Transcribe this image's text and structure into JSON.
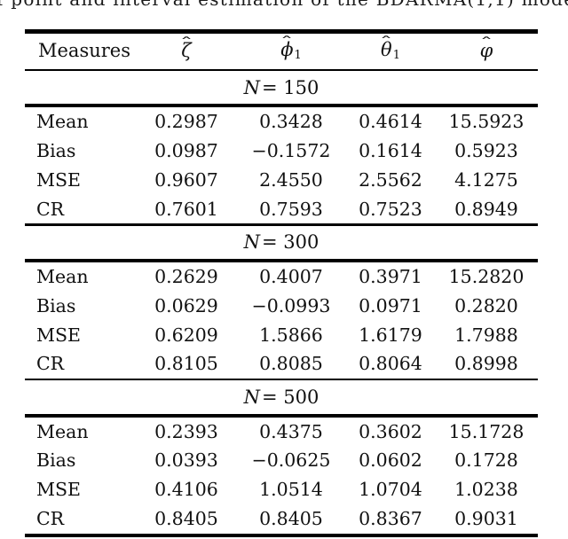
{
  "caption_fragment": "f point and interval estimation of the BDARMA(1,1) model, c",
  "colors": {
    "background": "#ffffff",
    "text": "#111111",
    "rule": "#000000"
  },
  "table": {
    "columns": [
      {
        "label": "Measures"
      },
      {
        "hat": "ˆ",
        "base": "ζ",
        "sub": ""
      },
      {
        "hat": "ˆ",
        "base": "ϕ",
        "sub": "1"
      },
      {
        "hat": "ˆ",
        "base": "θ",
        "sub": "1"
      },
      {
        "hat": "ˆ",
        "base": "φ",
        "sub": ""
      }
    ],
    "sections": [
      {
        "label_symbol": "N",
        "label_rest": "= 150",
        "rows": [
          {
            "label": "Mean",
            "values": [
              "0.2987",
              "0.3428",
              "0.4614",
              "15.5923"
            ]
          },
          {
            "label": "Bias",
            "values": [
              "0.0987",
              "−0.1572",
              "0.1614",
              "0.5923"
            ]
          },
          {
            "label": "MSE",
            "values": [
              "0.9607",
              "2.4550",
              "2.5562",
              "4.1275"
            ]
          },
          {
            "label": "CR",
            "values": [
              "0.7601",
              "0.7593",
              "0.7523",
              "0.8949"
            ]
          }
        ]
      },
      {
        "label_symbol": "N",
        "label_rest": "= 300",
        "rows": [
          {
            "label": "Mean",
            "values": [
              "0.2629",
              "0.4007",
              "0.3971",
              "15.2820"
            ]
          },
          {
            "label": "Bias",
            "values": [
              "0.0629",
              "−0.0993",
              "0.0971",
              "0.2820"
            ]
          },
          {
            "label": "MSE",
            "values": [
              "0.6209",
              "1.5866",
              "1.6179",
              "1.7988"
            ]
          },
          {
            "label": "CR",
            "values": [
              "0.8105",
              "0.8085",
              "0.8064",
              "0.8998"
            ]
          }
        ]
      },
      {
        "label_symbol": "N",
        "label_rest": "= 500",
        "rows": [
          {
            "label": "Mean",
            "values": [
              "0.2393",
              "0.4375",
              "0.3602",
              "15.1728"
            ]
          },
          {
            "label": "Bias",
            "values": [
              "0.0393",
              "−0.0625",
              "0.0602",
              "0.1728"
            ]
          },
          {
            "label": "MSE",
            "values": [
              "0.4106",
              "1.0514",
              "1.0704",
              "1.0238"
            ]
          },
          {
            "label": "CR",
            "values": [
              "0.8405",
              "0.8405",
              "0.8367",
              "0.9031"
            ]
          }
        ]
      }
    ]
  }
}
